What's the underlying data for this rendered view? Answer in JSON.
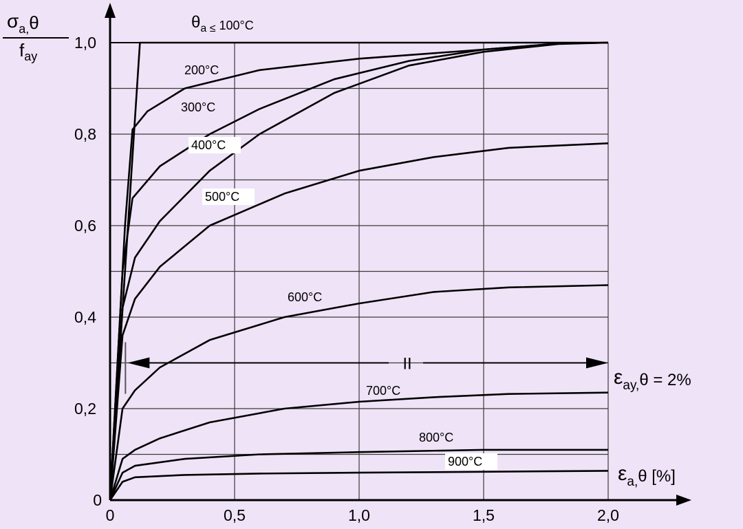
{
  "chart_data": {
    "type": "line",
    "title": "",
    "ylabel": {
      "main": "σ",
      "sub": "a,",
      "suffix": "θ",
      "den": "f",
      "den_sub": "ay"
    },
    "xlabel": {
      "main": "ε",
      "sub": "a,",
      "suffix": "θ [%]"
    },
    "xlim": [
      0,
      2.0
    ],
    "ylim": [
      0,
      1.0
    ],
    "xticks": [
      {
        "value": 0,
        "label": "0"
      },
      {
        "value": 0.5,
        "label": "0,5"
      },
      {
        "value": 1.0,
        "label": "1,0"
      },
      {
        "value": 1.5,
        "label": "1,5"
      },
      {
        "value": 2.0,
        "label": "2,0"
      }
    ],
    "yticks": [
      {
        "value": 0,
        "label": "0"
      },
      {
        "value": 0.2,
        "label": "0,2"
      },
      {
        "value": 0.4,
        "label": "0,4"
      },
      {
        "value": 0.6,
        "label": "0,6"
      },
      {
        "value": 0.8,
        "label": "0,8"
      },
      {
        "value": 1.0,
        "label": "1,0"
      }
    ],
    "grid": true,
    "annotations": {
      "strain_limit": {
        "main": "ε",
        "sub": "ay,",
        "suffix": "θ = 2%"
      },
      "region_label": "II",
      "region_range": [
        0.07,
        2.0
      ],
      "region_y": 0.3
    },
    "series": [
      {
        "name": "θa ≤ 100°C",
        "label_parts": {
          "main": "θ",
          "sub": "a ≤",
          "suffix": " 100°C"
        },
        "points": [
          [
            0,
            0
          ],
          [
            0.12,
            1.0
          ],
          [
            2.0,
            1.0
          ]
        ]
      },
      {
        "name": "200°C",
        "label": "200°C",
        "points": [
          [
            0,
            0
          ],
          [
            0.06,
            0.6
          ],
          [
            0.09,
            0.81
          ],
          [
            0.15,
            0.85
          ],
          [
            0.3,
            0.9
          ],
          [
            0.6,
            0.94
          ],
          [
            1.0,
            0.965
          ],
          [
            1.5,
            0.985
          ],
          [
            1.8,
            0.998
          ],
          [
            2.0,
            1.0
          ]
        ]
      },
      {
        "name": "300°C",
        "label": "300°C",
        "points": [
          [
            0,
            0
          ],
          [
            0.05,
            0.5
          ],
          [
            0.09,
            0.66
          ],
          [
            0.2,
            0.73
          ],
          [
            0.4,
            0.8
          ],
          [
            0.6,
            0.855
          ],
          [
            0.9,
            0.92
          ],
          [
            1.2,
            0.96
          ],
          [
            1.5,
            0.985
          ],
          [
            1.8,
            0.998
          ],
          [
            2.0,
            1.0
          ]
        ]
      },
      {
        "name": "400°C",
        "label": "400°C",
        "points": [
          [
            0,
            0
          ],
          [
            0.05,
            0.42
          ],
          [
            0.1,
            0.53
          ],
          [
            0.2,
            0.61
          ],
          [
            0.4,
            0.72
          ],
          [
            0.6,
            0.8
          ],
          [
            0.9,
            0.89
          ],
          [
            1.2,
            0.95
          ],
          [
            1.5,
            0.98
          ],
          [
            1.8,
            0.997
          ],
          [
            2.0,
            1.0
          ]
        ]
      },
      {
        "name": "500°C",
        "label": "500°C",
        "points": [
          [
            0,
            0
          ],
          [
            0.05,
            0.36
          ],
          [
            0.1,
            0.44
          ],
          [
            0.2,
            0.51
          ],
          [
            0.4,
            0.6
          ],
          [
            0.7,
            0.67
          ],
          [
            1.0,
            0.72
          ],
          [
            1.3,
            0.75
          ],
          [
            1.6,
            0.77
          ],
          [
            2.0,
            0.78
          ]
        ]
      },
      {
        "name": "600°C",
        "label": "600°C",
        "points": [
          [
            0,
            0
          ],
          [
            0.05,
            0.2
          ],
          [
            0.1,
            0.24
          ],
          [
            0.2,
            0.29
          ],
          [
            0.4,
            0.35
          ],
          [
            0.7,
            0.4
          ],
          [
            1.0,
            0.43
          ],
          [
            1.3,
            0.455
          ],
          [
            1.6,
            0.465
          ],
          [
            2.0,
            0.47
          ]
        ]
      },
      {
        "name": "700°C",
        "label": "700°C",
        "points": [
          [
            0,
            0
          ],
          [
            0.05,
            0.09
          ],
          [
            0.1,
            0.11
          ],
          [
            0.2,
            0.135
          ],
          [
            0.4,
            0.17
          ],
          [
            0.7,
            0.2
          ],
          [
            1.0,
            0.215
          ],
          [
            1.3,
            0.225
          ],
          [
            1.6,
            0.232
          ],
          [
            2.0,
            0.235
          ]
        ]
      },
      {
        "name": "800°C",
        "label": "800°C",
        "points": [
          [
            0,
            0
          ],
          [
            0.05,
            0.06
          ],
          [
            0.1,
            0.075
          ],
          [
            0.3,
            0.09
          ],
          [
            0.6,
            0.1
          ],
          [
            1.0,
            0.105
          ],
          [
            1.5,
            0.11
          ],
          [
            2.0,
            0.11
          ]
        ]
      },
      {
        "name": "900°C",
        "label": "900°C",
        "points": [
          [
            0,
            0
          ],
          [
            0.05,
            0.04
          ],
          [
            0.1,
            0.05
          ],
          [
            0.3,
            0.055
          ],
          [
            0.6,
            0.058
          ],
          [
            1.0,
            0.06
          ],
          [
            1.5,
            0.062
          ],
          [
            2.0,
            0.064
          ]
        ]
      }
    ]
  }
}
